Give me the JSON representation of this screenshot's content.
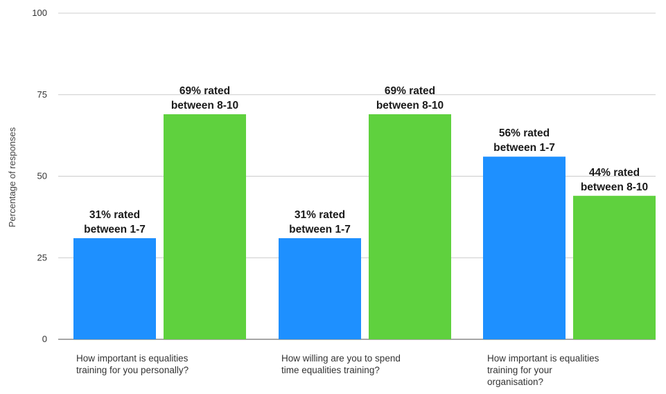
{
  "chart_data": {
    "type": "bar",
    "ylabel": "Percentage of responses",
    "ylim": [
      0,
      100
    ],
    "yticks": [
      0,
      25,
      50,
      75,
      100
    ],
    "grid": true,
    "categories": [
      [
        "How important is equalities",
        "training for you personally?"
      ],
      [
        "How willing are you to spend",
        "time equalities training?"
      ],
      [
        "How important is equalities",
        "training for your",
        "organisation?"
      ]
    ],
    "series": [
      {
        "color": "#1e90ff",
        "values": [
          31,
          31,
          56
        ],
        "labels": [
          [
            "31% rated",
            "between 1-7"
          ],
          [
            "31% rated",
            "between 1-7"
          ],
          [
            "56% rated",
            "between 1-7"
          ]
        ]
      },
      {
        "color": "#5fd13e",
        "values": [
          69,
          69,
          44
        ],
        "labels": [
          [
            "69% rated",
            "between 8-10"
          ],
          [
            "69% rated",
            "between 8-10"
          ],
          [
            "44% rated",
            "between 8-10"
          ]
        ]
      }
    ],
    "grid_color": "#cccccc",
    "axis_color": "#888888"
  }
}
